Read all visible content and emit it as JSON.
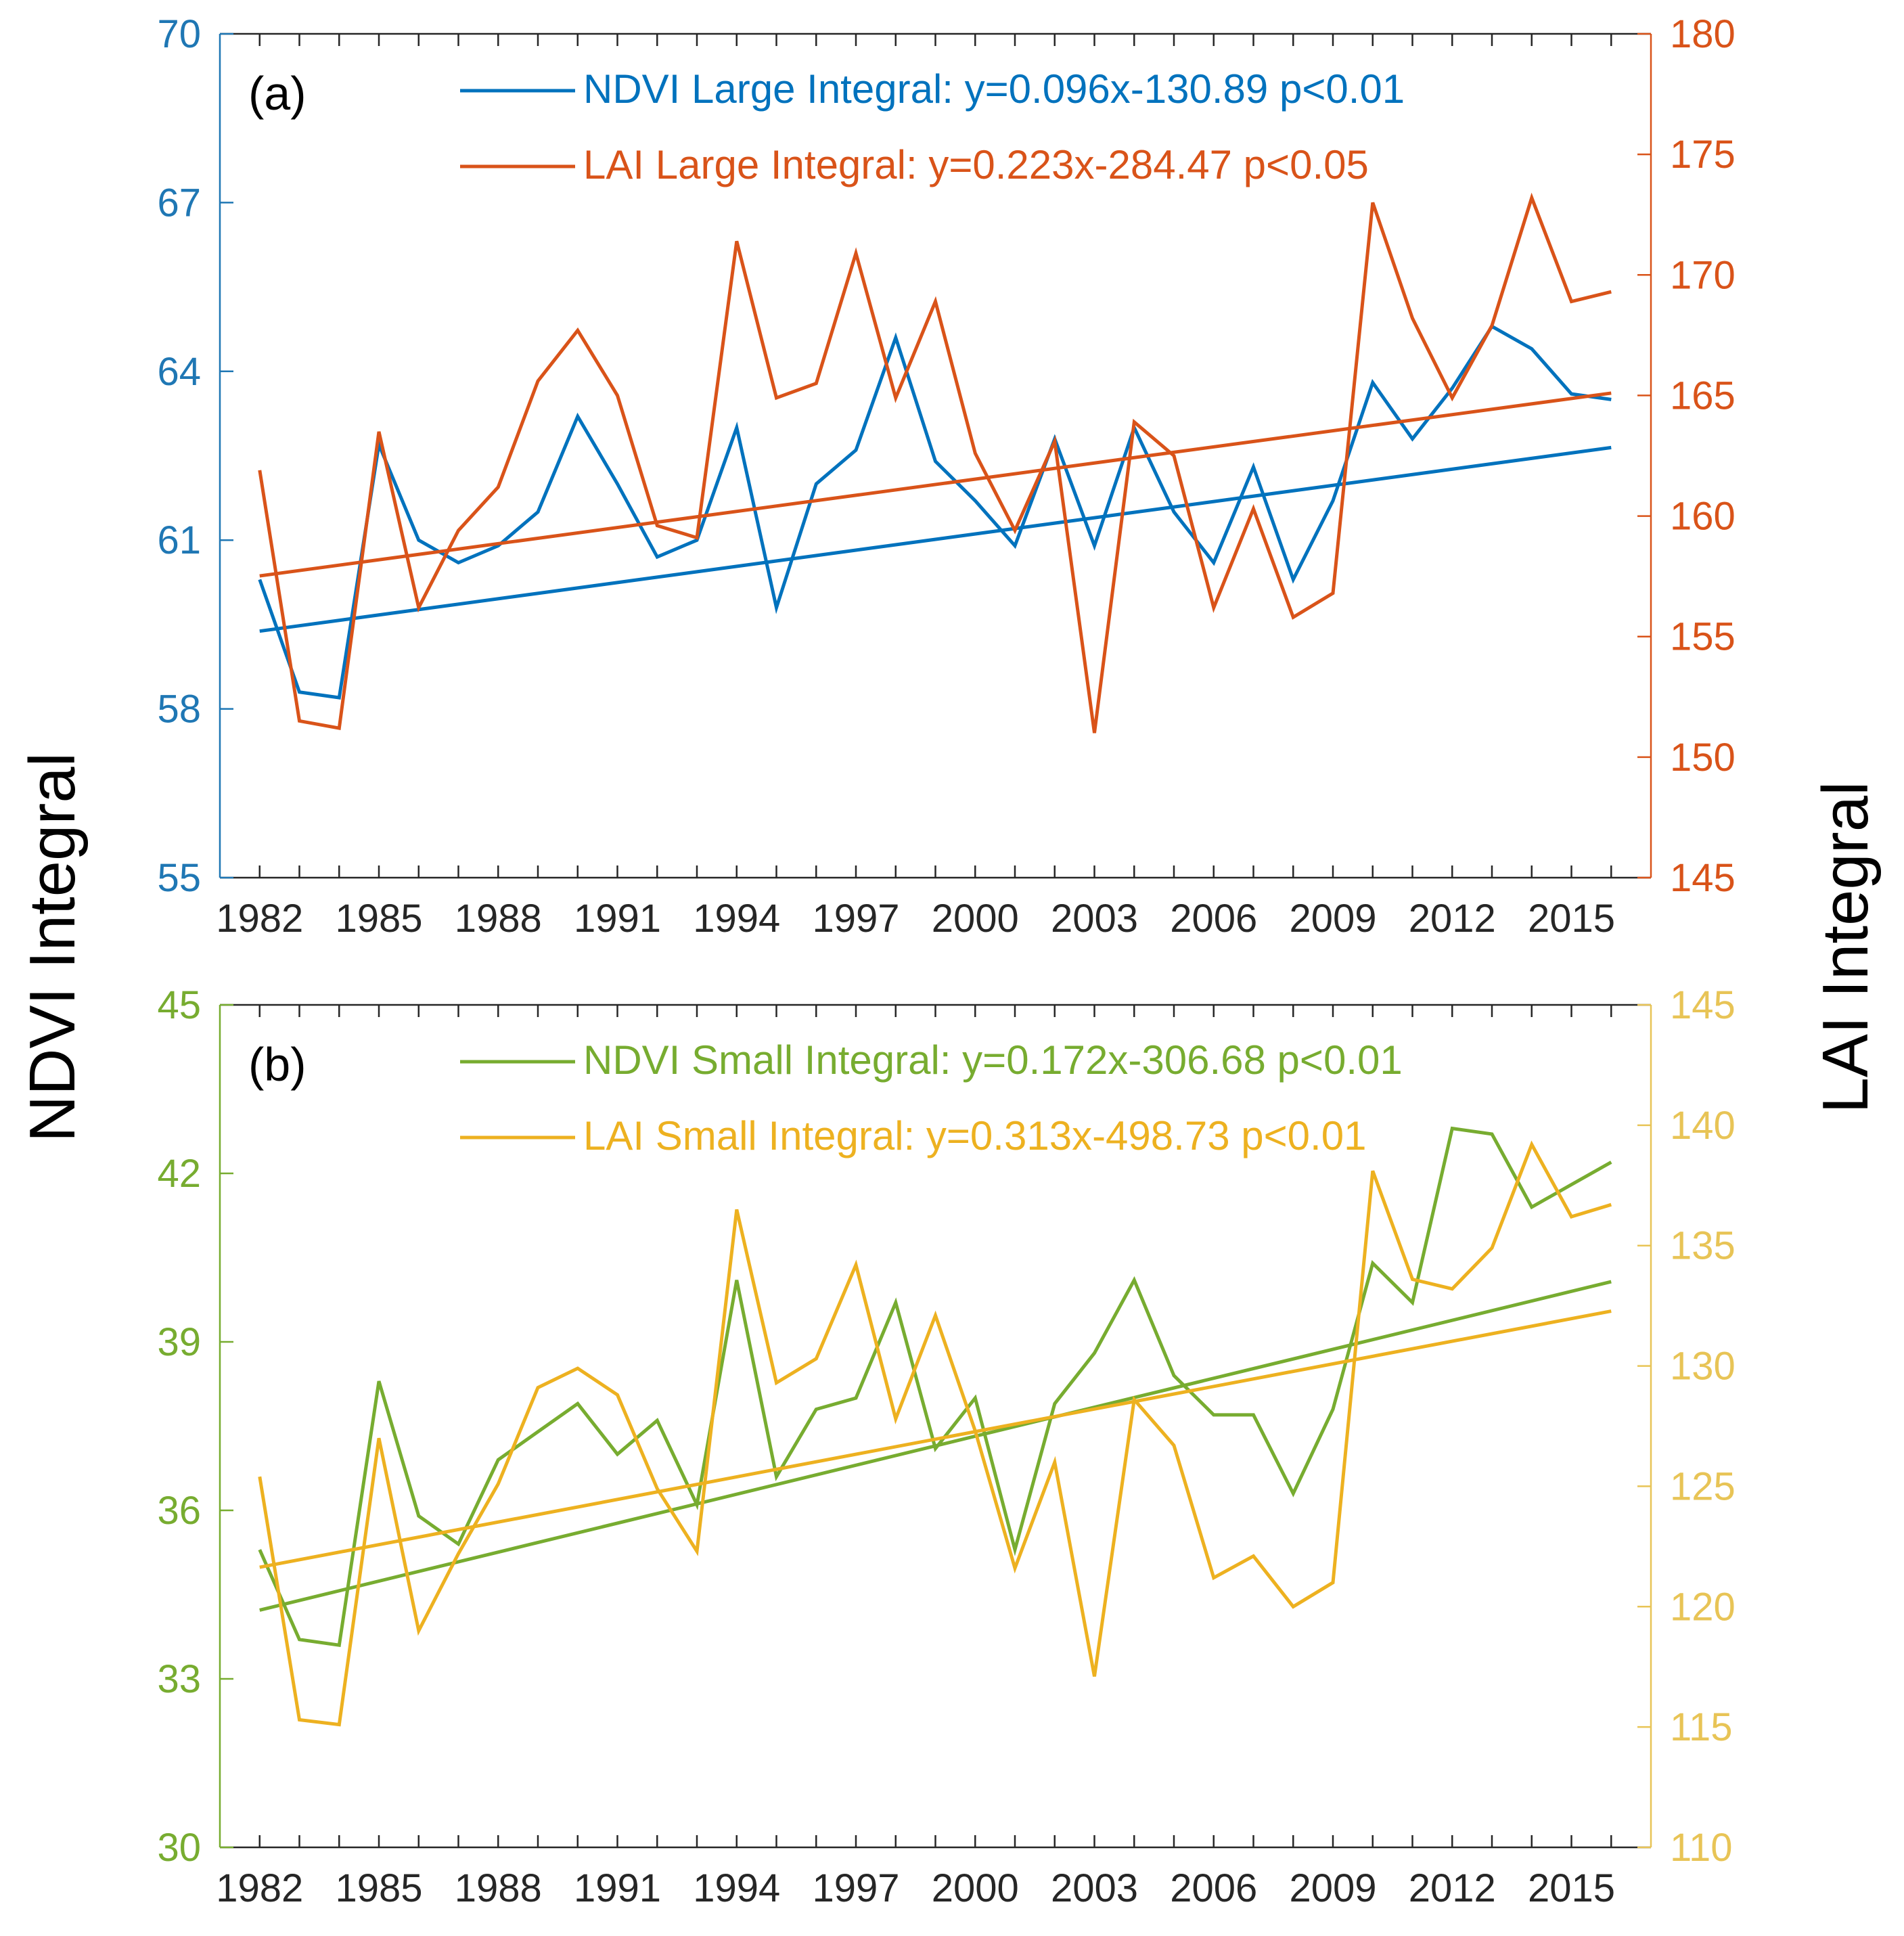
{
  "figure": {
    "left_axis_label": "NDVI Integral",
    "right_axis_label": "LAI Integral",
    "label_color": "#000000"
  },
  "chart_data": [
    {
      "type": "line",
      "panel_label": "(a)",
      "x": [
        1982,
        1983,
        1984,
        1985,
        1986,
        1987,
        1988,
        1989,
        1990,
        1991,
        1992,
        1993,
        1994,
        1995,
        1996,
        1997,
        1998,
        1999,
        2000,
        2001,
        2002,
        2003,
        2004,
        2005,
        2006,
        2007,
        2008,
        2009,
        2010,
        2011,
        2012,
        2013,
        2014,
        2015,
        2016
      ],
      "xlim": [
        1981,
        2017
      ],
      "xticks": [
        1982,
        1985,
        1988,
        1991,
        1994,
        1997,
        2000,
        2003,
        2006,
        2009,
        2012,
        2015
      ],
      "left_axis": {
        "ylim": [
          55,
          70
        ],
        "ticks": [
          55,
          58,
          61,
          64,
          67,
          70
        ],
        "color": "#1f77b4"
      },
      "right_axis": {
        "ylim": [
          145,
          180
        ],
        "ticks": [
          145,
          150,
          155,
          160,
          165,
          170,
          175,
          180
        ],
        "color": "#d95319"
      },
      "series": [
        {
          "name": "NDVI Large Integral: y=0.096x-130.89 p<0.01",
          "axis": "left",
          "color": "#0072bd",
          "values": [
            60.3,
            58.3,
            58.2,
            62.7,
            61.0,
            60.6,
            60.9,
            61.5,
            63.2,
            62.0,
            60.7,
            61.0,
            63.0,
            59.8,
            62.0,
            62.6,
            64.6,
            62.4,
            61.7,
            60.9,
            62.8,
            60.9,
            63.0,
            61.5,
            60.6,
            62.3,
            60.3,
            61.7,
            63.8,
            62.8,
            63.7,
            64.8,
            64.4,
            63.6,
            63.5
          ],
          "trend": {
            "slope": 0.096,
            "intercept": -130.89
          }
        },
        {
          "name": "LAI Large Integral: y=0.223x-284.47 p<0.05",
          "axis": "right",
          "color": "#d95319",
          "values": [
            161.9,
            151.5,
            151.2,
            163.5,
            156.2,
            159.4,
            161.2,
            165.6,
            167.7,
            165.0,
            159.6,
            159.1,
            171.4,
            164.9,
            165.5,
            170.9,
            164.9,
            168.9,
            162.6,
            159.4,
            163.1,
            151.0,
            163.9,
            162.5,
            156.2,
            160.3,
            155.8,
            156.8,
            173.0,
            168.2,
            164.9,
            167.9,
            173.2,
            168.9,
            169.3
          ],
          "trend": {
            "slope": 0.223,
            "intercept": -284.47
          }
        }
      ]
    },
    {
      "type": "line",
      "panel_label": "(b)",
      "x": [
        1982,
        1983,
        1984,
        1985,
        1986,
        1987,
        1988,
        1989,
        1990,
        1991,
        1992,
        1993,
        1994,
        1995,
        1996,
        1997,
        1998,
        1999,
        2000,
        2001,
        2002,
        2003,
        2004,
        2005,
        2006,
        2007,
        2008,
        2009,
        2010,
        2011,
        2012,
        2013,
        2014,
        2015,
        2016
      ],
      "xlim": [
        1981,
        2017
      ],
      "xticks": [
        1982,
        1985,
        1988,
        1991,
        1994,
        1997,
        2000,
        2003,
        2006,
        2009,
        2012,
        2015
      ],
      "left_axis": {
        "ylim": [
          30,
          45
        ],
        "ticks": [
          30,
          33,
          36,
          39,
          42,
          45
        ],
        "color": "#77ac30"
      },
      "right_axis": {
        "ylim": [
          110,
          145
        ],
        "ticks": [
          110,
          115,
          120,
          125,
          130,
          135,
          140,
          145
        ],
        "color": "#e8c456"
      },
      "series": [
        {
          "name": "NDVI Small Integral: y=0.172x-306.68 p<0.01",
          "axis": "left",
          "color": "#77ac30",
          "values": [
            35.3,
            33.7,
            33.6,
            38.3,
            35.9,
            35.4,
            36.9,
            37.4,
            37.9,
            37.0,
            37.6,
            36.1,
            40.1,
            36.6,
            37.8,
            38.0,
            39.7,
            37.1,
            38.0,
            35.3,
            37.9,
            38.8,
            40.1,
            38.4,
            37.7,
            37.7,
            36.3,
            37.8,
            40.4,
            39.7,
            42.8,
            42.7,
            41.4,
            41.8,
            42.2
          ],
          "trend": {
            "slope": 0.172,
            "intercept": -306.68
          }
        },
        {
          "name": "LAI Small Integral: y=0.313x-498.73 p<0.01",
          "axis": "right",
          "color": "#edb120",
          "values": [
            125.4,
            115.3,
            115.1,
            127.0,
            119.0,
            122.2,
            125.1,
            129.1,
            129.9,
            128.8,
            124.9,
            122.3,
            136.5,
            129.3,
            130.3,
            134.2,
            127.8,
            132.1,
            127.3,
            121.6,
            126.0,
            117.1,
            128.6,
            126.7,
            121.2,
            122.1,
            120.0,
            121.0,
            138.1,
            133.6,
            133.2,
            134.9,
            139.2,
            136.2,
            136.7
          ],
          "trend": {
            "slope": 0.313,
            "intercept": -498.73
          }
        }
      ]
    }
  ]
}
